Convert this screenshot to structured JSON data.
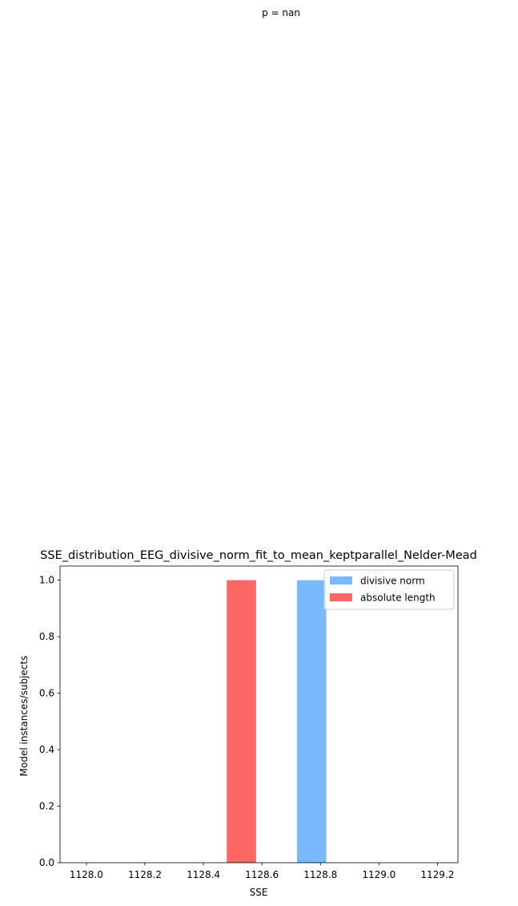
{
  "annotation": "p = nan",
  "chart_data": {
    "type": "bar",
    "title": "SSE_distribution_EEG_divisive_norm_fit_to_mean_keptparallel_Nelder-Mead",
    "xlabel": "SSE",
    "ylabel": "Model instances/subjects",
    "xlim": [
      1127.91,
      1129.27
    ],
    "ylim": [
      0,
      1.05
    ],
    "xticks": [
      1128.0,
      1128.2,
      1128.4,
      1128.6,
      1128.8,
      1129.0,
      1129.2
    ],
    "xtick_labels": [
      "1128.0",
      "1128.2",
      "1128.4",
      "1128.6",
      "1128.8",
      "1129.0",
      "1129.2"
    ],
    "yticks": [
      0.0,
      0.2,
      0.4,
      0.6,
      0.8,
      1.0
    ],
    "ytick_labels": [
      "0.0",
      "0.2",
      "0.4",
      "0.6",
      "0.8",
      "1.0"
    ],
    "grid": false,
    "legend_position": "top-right",
    "series": [
      {
        "name": "divisive norm",
        "color": "#78b9ff",
        "bars": [
          {
            "x0": 1128.72,
            "x1": 1128.82,
            "value": 1
          }
        ]
      },
      {
        "name": "absolute length",
        "color": "#ff6666",
        "bars": [
          {
            "x0": 1128.48,
            "x1": 1128.58,
            "value": 1
          }
        ]
      }
    ]
  }
}
